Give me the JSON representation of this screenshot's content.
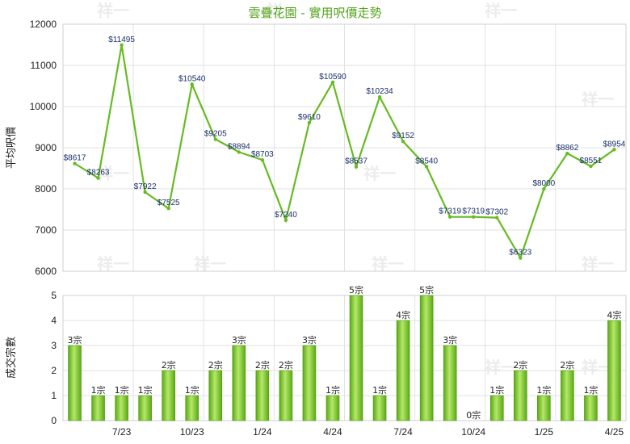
{
  "title": "雲疊花園 - 實用呎價走勢",
  "watermark": "祥一",
  "chart_data": [
    {
      "type": "line",
      "ylabel": "平均呎價",
      "ylim": [
        6000,
        12000
      ],
      "yticks": [
        6000,
        7000,
        8000,
        9000,
        10000,
        11000,
        12000
      ],
      "grid": true,
      "color": "#66bb22",
      "values": [
        8617,
        8263,
        11495,
        7922,
        7525,
        10540,
        9205,
        8894,
        8703,
        7240,
        9610,
        10590,
        8537,
        10234,
        9152,
        8540,
        7319,
        7319,
        7302,
        6323,
        8000,
        8862,
        8551,
        8954
      ],
      "labels": [
        "$8617",
        "$8263",
        "$11495",
        "$7922",
        "$7525",
        "$10540",
        "$9205",
        "$8894",
        "$8703",
        "$7240",
        "$9610",
        "$10590",
        "$8537",
        "$10234",
        "$9152",
        "$8540",
        "$7319",
        "$7319",
        "$7302",
        "$6323",
        "$8000",
        "$8862",
        "$8551",
        "$8954"
      ]
    },
    {
      "type": "bar",
      "ylabel": "成交宗數",
      "ylim": [
        0,
        5
      ],
      "yticks": [
        0,
        1,
        2,
        3,
        4,
        5
      ],
      "grid": true,
      "color": "#66bb22",
      "values": [
        3,
        1,
        1,
        1,
        2,
        1,
        2,
        3,
        2,
        2,
        3,
        1,
        5,
        1,
        4,
        5,
        3,
        0,
        1,
        2,
        1,
        2,
        1,
        4
      ],
      "labels": [
        "3宗",
        "1宗",
        "1宗",
        "1宗",
        "2宗",
        "1宗",
        "2宗",
        "3宗",
        "2宗",
        "2宗",
        "3宗",
        "1宗",
        "5宗",
        "1宗",
        "4宗",
        "5宗",
        "3宗",
        "0宗",
        "1宗",
        "2宗",
        "1宗",
        "2宗",
        "1宗",
        "4宗"
      ],
      "xtick_labels": [
        "7/23",
        "10/23",
        "1/24",
        "4/24",
        "7/24",
        "10/24",
        "1/25",
        "4/25"
      ]
    }
  ]
}
